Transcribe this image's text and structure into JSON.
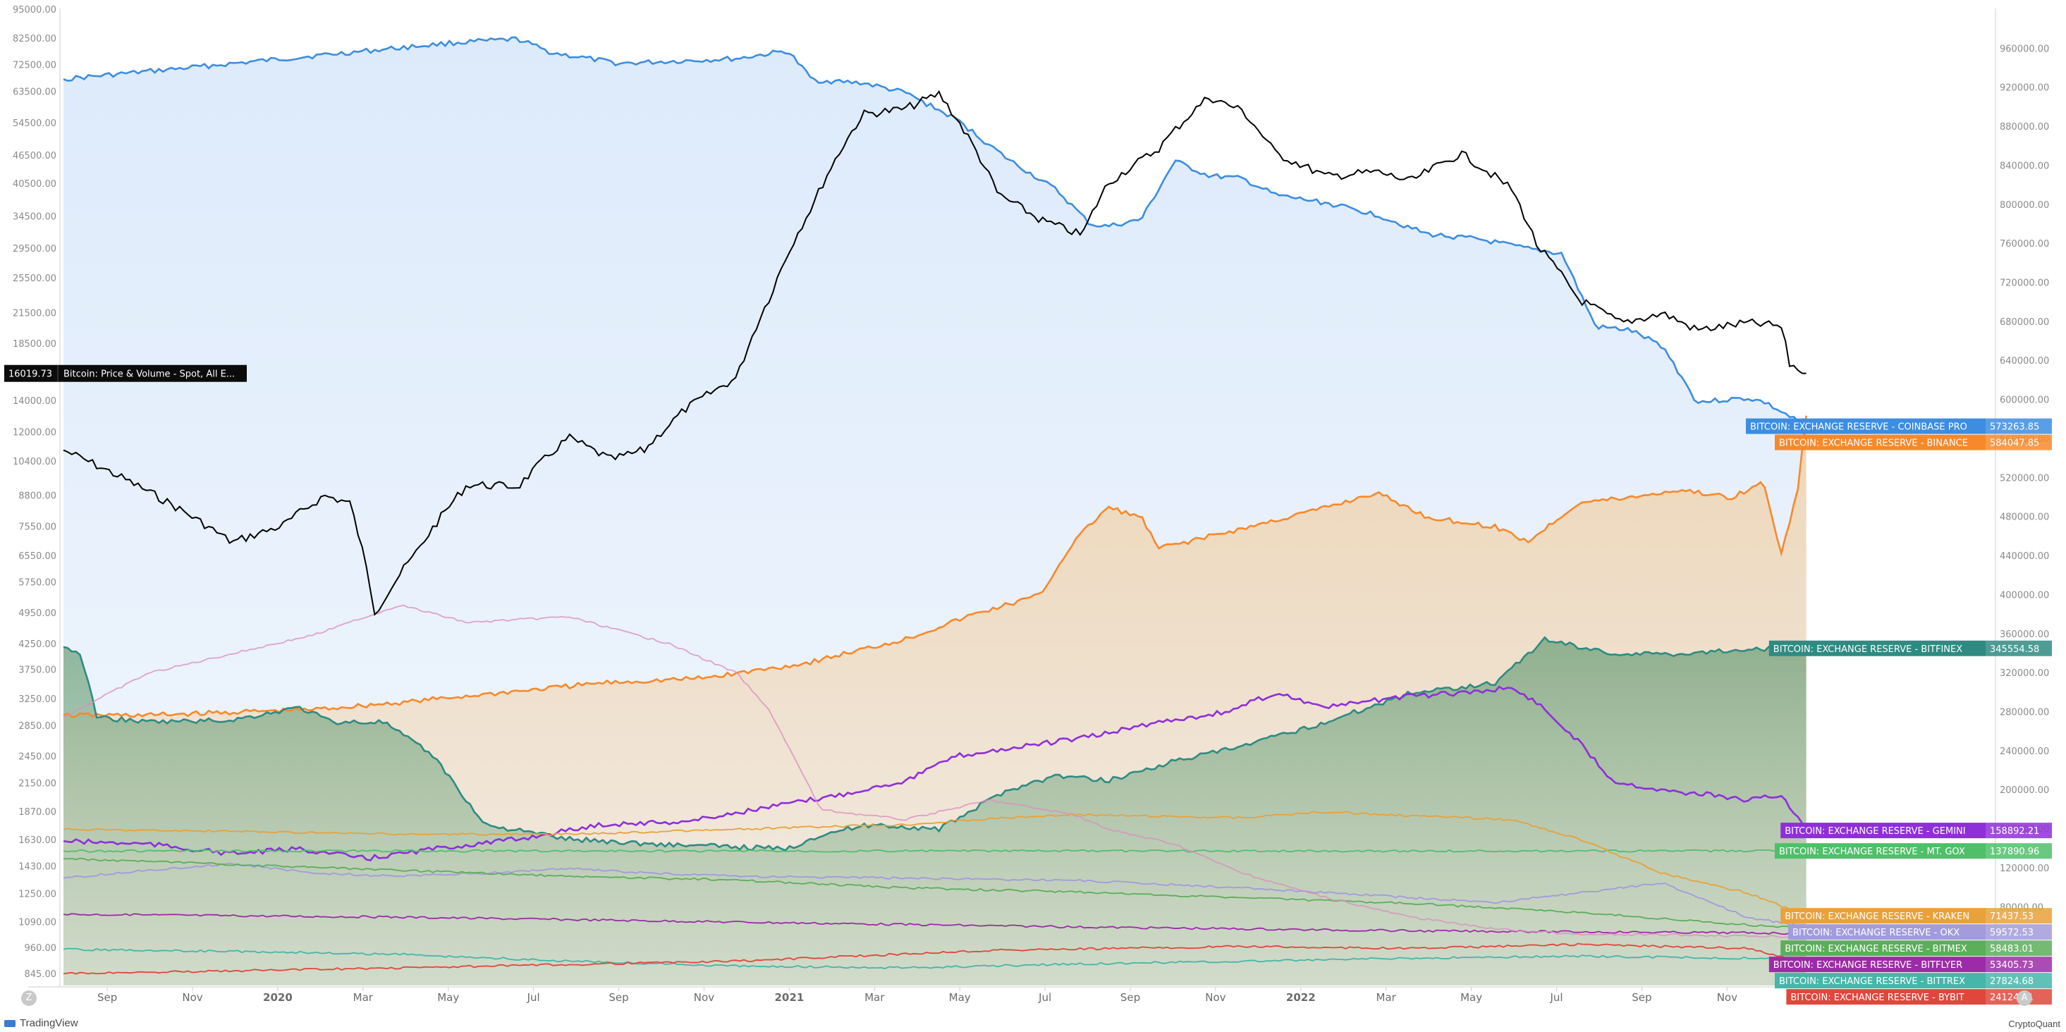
{
  "chart_data": {
    "type": "area",
    "x_ticks": [
      "Sep",
      "Nov",
      "2020",
      "Mar",
      "May",
      "Jul",
      "Sep",
      "Nov",
      "2021",
      "Mar",
      "May",
      "Jul",
      "Sep",
      "Nov",
      "2022",
      "Mar",
      "May",
      "Jul",
      "Sep",
      "Nov"
    ],
    "left_axis_ticks": [
      "95000.00",
      "82500.00",
      "72500.00",
      "63500.00",
      "54500.00",
      "46500.00",
      "40500.00",
      "34500.00",
      "29500.00",
      "25500.00",
      "21500.00",
      "18500.00",
      "16019.73",
      "14000.00",
      "12000.00",
      "10400.00",
      "8800.00",
      "7550.00",
      "6550.00",
      "5750.00",
      "4950.00",
      "4250.00",
      "3750.00",
      "3250.00",
      "2850.00",
      "2450.00",
      "2150.00",
      "1870.00",
      "1630.00",
      "1430.00",
      "1250.00",
      "1090.00",
      "960.00",
      "845.00"
    ],
    "right_axis_ticks": [
      "960000.00",
      "920000.00",
      "880000.00",
      "840000.00",
      "800000.00",
      "760000.00",
      "720000.00",
      "680000.00",
      "640000.00",
      "600000.00",
      "560000.00",
      "520000.00",
      "480000.00",
      "440000.00",
      "400000.00",
      "360000.00",
      "320000.00",
      "280000.00",
      "240000.00",
      "200000.00",
      "160000.00",
      "120000.00",
      "80000.00"
    ],
    "price_series": {
      "label": "16019.73",
      "name": "Bitcoin: Price & Volume - Spot, All E...",
      "color": "#000000",
      "points": [
        [
          0,
          11000
        ],
        [
          0.03,
          9800
        ],
        [
          0.07,
          8200
        ],
        [
          0.1,
          7000
        ],
        [
          0.13,
          7600
        ],
        [
          0.155,
          8800
        ],
        [
          0.17,
          8500
        ],
        [
          0.185,
          4950
        ],
        [
          0.21,
          6700
        ],
        [
          0.24,
          9300
        ],
        [
          0.27,
          9200
        ],
        [
          0.3,
          11700
        ],
        [
          0.325,
          10500
        ],
        [
          0.345,
          11000
        ],
        [
          0.37,
          13500
        ],
        [
          0.4,
          15700
        ],
        [
          0.42,
          23500
        ],
        [
          0.445,
          36500
        ],
        [
          0.475,
          57000
        ],
        [
          0.5,
          58500
        ],
        [
          0.52,
          63000
        ],
        [
          0.555,
          38500
        ],
        [
          0.58,
          34000
        ],
        [
          0.605,
          31500
        ],
        [
          0.62,
          40500
        ],
        [
          0.65,
          48000
        ],
        [
          0.68,
          62000
        ],
        [
          0.7,
          58000
        ],
        [
          0.72,
          47000
        ],
        [
          0.75,
          42000
        ],
        [
          0.78,
          43000
        ],
        [
          0.8,
          41000
        ],
        [
          0.83,
          47000
        ],
        [
          0.86,
          39500
        ],
        [
          0.875,
          30000
        ],
        [
          0.9,
          23000
        ],
        [
          0.925,
          20500
        ],
        [
          0.95,
          21500
        ],
        [
          0.97,
          19800
        ],
        [
          1.0,
          20500
        ],
        [
          1.02,
          20200
        ],
        [
          1.025,
          16800
        ],
        [
          1.035,
          16019.73
        ]
      ]
    },
    "reserve_series": [
      {
        "name": "BITCOIN: EXCHANGE RESERVE - COINBASE PRO",
        "value": "573263.85",
        "color": "#3d8de0",
        "points": [
          [
            0,
            929000
          ],
          [
            0.07,
            940000
          ],
          [
            0.15,
            953000
          ],
          [
            0.23,
            966000
          ],
          [
            0.27,
            970000
          ],
          [
            0.29,
            956000
          ],
          [
            0.33,
            945000
          ],
          [
            0.4,
            950000
          ],
          [
            0.43,
            958000
          ],
          [
            0.445,
            928000
          ],
          [
            0.475,
            925000
          ],
          [
            0.5,
            915000
          ],
          [
            0.53,
            888000
          ],
          [
            0.56,
            848000
          ],
          [
            0.59,
            815000
          ],
          [
            0.61,
            780000
          ],
          [
            0.62,
            778000
          ],
          [
            0.64,
            785000
          ],
          [
            0.66,
            845000
          ],
          [
            0.68,
            830000
          ],
          [
            0.7,
            827000
          ],
          [
            0.72,
            810000
          ],
          [
            0.75,
            802000
          ],
          [
            0.78,
            790000
          ],
          [
            0.81,
            770000
          ],
          [
            0.84,
            765000
          ],
          [
            0.87,
            755000
          ],
          [
            0.89,
            750000
          ],
          [
            0.91,
            675000
          ],
          [
            0.93,
            672000
          ],
          [
            0.95,
            655000
          ],
          [
            0.97,
            598000
          ],
          [
            1.0,
            602000
          ],
          [
            1.01,
            598000
          ],
          [
            1.035,
            573263.85
          ]
        ]
      },
      {
        "name": "BITCOIN: EXCHANGE RESERVE - BINANCE",
        "value": "584047.85",
        "color": "#f7892b",
        "points": [
          [
            0,
            277000
          ],
          [
            0.05,
            277000
          ],
          [
            0.1,
            280000
          ],
          [
            0.15,
            283000
          ],
          [
            0.2,
            290000
          ],
          [
            0.26,
            300000
          ],
          [
            0.32,
            310000
          ],
          [
            0.38,
            315000
          ],
          [
            0.44,
            330000
          ],
          [
            0.5,
            355000
          ],
          [
            0.54,
            380000
          ],
          [
            0.58,
            400000
          ],
          [
            0.6,
            455000
          ],
          [
            0.62,
            490000
          ],
          [
            0.64,
            480000
          ],
          [
            0.65,
            448000
          ],
          [
            0.7,
            468000
          ],
          [
            0.75,
            490000
          ],
          [
            0.78,
            505000
          ],
          [
            0.81,
            480000
          ],
          [
            0.85,
            470000
          ],
          [
            0.87,
            455000
          ],
          [
            0.9,
            495000
          ],
          [
            0.93,
            500000
          ],
          [
            0.96,
            508000
          ],
          [
            0.99,
            500000
          ],
          [
            1.01,
            515000
          ],
          [
            1.02,
            440000
          ],
          [
            1.03,
            510000
          ],
          [
            1.035,
            584047.85
          ]
        ]
      },
      {
        "name": "BITCOIN: EXCHANGE RESERVE - BITFINEX",
        "value": "345554.58",
        "color": "#2e8b82",
        "points": [
          [
            0,
            347000
          ],
          [
            0.01,
            340000
          ],
          [
            0.02,
            275000
          ],
          [
            0.05,
            270000
          ],
          [
            0.1,
            272000
          ],
          [
            0.14,
            285000
          ],
          [
            0.16,
            270000
          ],
          [
            0.19,
            270000
          ],
          [
            0.22,
            235000
          ],
          [
            0.25,
            165000
          ],
          [
            0.3,
            150000
          ],
          [
            0.35,
            145000
          ],
          [
            0.4,
            142000
          ],
          [
            0.43,
            140000
          ],
          [
            0.45,
            155000
          ],
          [
            0.48,
            165000
          ],
          [
            0.52,
            160000
          ],
          [
            0.56,
            200000
          ],
          [
            0.59,
            215000
          ],
          [
            0.62,
            210000
          ],
          [
            0.66,
            230000
          ],
          [
            0.7,
            245000
          ],
          [
            0.75,
            270000
          ],
          [
            0.8,
            300000
          ],
          [
            0.85,
            310000
          ],
          [
            0.88,
            355000
          ],
          [
            0.92,
            340000
          ],
          [
            0.96,
            340000
          ],
          [
            1.0,
            345000
          ],
          [
            1.035,
            345554.58
          ]
        ]
      },
      {
        "name": "BITCOIN: EXCHANGE RESERVE - GEMINI",
        "value": "158892.21",
        "color": "#8e2fd8",
        "points": [
          [
            0,
            148000
          ],
          [
            0.05,
            145000
          ],
          [
            0.1,
            135000
          ],
          [
            0.14,
            140000
          ],
          [
            0.18,
            130000
          ],
          [
            0.22,
            140000
          ],
          [
            0.27,
            150000
          ],
          [
            0.32,
            165000
          ],
          [
            0.37,
            168000
          ],
          [
            0.41,
            180000
          ],
          [
            0.46,
            195000
          ],
          [
            0.5,
            210000
          ],
          [
            0.53,
            235000
          ],
          [
            0.57,
            245000
          ],
          [
            0.61,
            255000
          ],
          [
            0.65,
            270000
          ],
          [
            0.69,
            280000
          ],
          [
            0.72,
            300000
          ],
          [
            0.75,
            285000
          ],
          [
            0.79,
            295000
          ],
          [
            0.83,
            300000
          ],
          [
            0.86,
            305000
          ],
          [
            0.875,
            290000
          ],
          [
            0.9,
            250000
          ],
          [
            0.92,
            210000
          ],
          [
            0.95,
            200000
          ],
          [
            0.98,
            195000
          ],
          [
            1.0,
            190000
          ],
          [
            1.02,
            195000
          ],
          [
            1.035,
            158892.21
          ]
        ]
      },
      {
        "name": "BITCOIN: EXCHANGE RESERVE - MT. GOX",
        "value": "137890.96",
        "color": "#4fbf6a",
        "points": [
          [
            0,
            137890.96
          ],
          [
            1.035,
            137890.96
          ]
        ]
      },
      {
        "name": "BITCOIN: EXCHANGE RESERVE - KRAKEN",
        "value": "71437.53",
        "color": "#e9a13a",
        "points": [
          [
            0,
            160000
          ],
          [
            0.1,
            158000
          ],
          [
            0.2,
            155000
          ],
          [
            0.3,
            155000
          ],
          [
            0.4,
            160000
          ],
          [
            0.5,
            165000
          ],
          [
            0.56,
            172000
          ],
          [
            0.6,
            175000
          ],
          [
            0.7,
            172000
          ],
          [
            0.75,
            178000
          ],
          [
            0.8,
            174000
          ],
          [
            0.86,
            170000
          ],
          [
            0.9,
            150000
          ],
          [
            0.95,
            115000
          ],
          [
            1.0,
            95000
          ],
          [
            1.035,
            71437.53
          ]
        ]
      },
      {
        "name": "BITCOIN: EXCHANGE RESERVE - OKX",
        "value": "59572.53",
        "color": "#a29bdc",
        "points": [
          [
            0,
            110000
          ],
          [
            0.05,
            118000
          ],
          [
            0.1,
            125000
          ],
          [
            0.15,
            115000
          ],
          [
            0.2,
            112000
          ],
          [
            0.25,
            115000
          ],
          [
            0.3,
            120000
          ],
          [
            0.35,
            115000
          ],
          [
            0.4,
            112000
          ],
          [
            0.5,
            110000
          ],
          [
            0.6,
            108000
          ],
          [
            0.7,
            100000
          ],
          [
            0.8,
            90000
          ],
          [
            0.85,
            85000
          ],
          [
            0.9,
            95000
          ],
          [
            0.95,
            105000
          ],
          [
            1.0,
            70000
          ],
          [
            1.035,
            59572.53
          ]
        ]
      },
      {
        "name": "BITCOIN: EXCHANGE RESERVE - BITMEX",
        "value": "58483.01",
        "color": "#5cae5a",
        "points": [
          [
            0,
            130000
          ],
          [
            0.1,
            124000
          ],
          [
            0.2,
            118000
          ],
          [
            0.3,
            112000
          ],
          [
            0.4,
            108000
          ],
          [
            0.5,
            100000
          ],
          [
            0.6,
            96000
          ],
          [
            0.7,
            90000
          ],
          [
            0.8,
            84000
          ],
          [
            0.9,
            75000
          ],
          [
            1.0,
            62000
          ],
          [
            1.035,
            58483.01
          ]
        ]
      },
      {
        "name": "BITCOIN: EXCHANGE RESERVE - BITFLYER",
        "value": "53405.73",
        "color": "#9d2ba7",
        "points": [
          [
            0,
            73000
          ],
          [
            0.2,
            70000
          ],
          [
            0.4,
            65000
          ],
          [
            0.6,
            60000
          ],
          [
            0.8,
            56000
          ],
          [
            1.0,
            54000
          ],
          [
            1.035,
            53405.73
          ]
        ]
      },
      {
        "name": "BITCOIN: EXCHANGE RESERVE - BITTREX",
        "value": "27824.68",
        "color": "#45b6a9",
        "points": [
          [
            0,
            37000
          ],
          [
            0.1,
            35000
          ],
          [
            0.2,
            32000
          ],
          [
            0.3,
            25000
          ],
          [
            0.4,
            20000
          ],
          [
            0.5,
            18000
          ],
          [
            0.6,
            22000
          ],
          [
            0.7,
            25000
          ],
          [
            0.8,
            28000
          ],
          [
            0.9,
            30000
          ],
          [
            1.0,
            28000
          ],
          [
            1.035,
            27824.68
          ]
        ]
      },
      {
        "name": "BITCOIN: EXCHANGE RESERVE - BYBIT",
        "value": "24124.11",
        "color": "#e0463c",
        "points": [
          [
            0,
            12000
          ],
          [
            0.2,
            18000
          ],
          [
            0.4,
            25000
          ],
          [
            0.55,
            36000
          ],
          [
            0.7,
            40000
          ],
          [
            0.8,
            38000
          ],
          [
            0.9,
            42000
          ],
          [
            1.0,
            38000
          ],
          [
            1.035,
            24124.11
          ]
        ]
      },
      {
        "name": "",
        "value": "",
        "color": "#d98fbf",
        "points": [
          [
            0,
            275000
          ],
          [
            0.05,
            320000
          ],
          [
            0.1,
            340000
          ],
          [
            0.15,
            360000
          ],
          [
            0.2,
            390000
          ],
          [
            0.24,
            372000
          ],
          [
            0.3,
            378000
          ],
          [
            0.36,
            350000
          ],
          [
            0.4,
            320000
          ],
          [
            0.42,
            280000
          ],
          [
            0.45,
            180000
          ],
          [
            0.5,
            170000
          ],
          [
            0.55,
            190000
          ],
          [
            0.6,
            175000
          ],
          [
            0.62,
            160000
          ],
          [
            0.66,
            145000
          ],
          [
            0.7,
            115000
          ],
          [
            0.75,
            90000
          ],
          [
            0.8,
            70000
          ],
          [
            0.85,
            58000
          ],
          [
            0.9,
            52000
          ],
          [
            0.95,
            52000
          ],
          [
            1.035,
            50000
          ]
        ]
      }
    ],
    "legend_placement": "right",
    "grid": false
  },
  "footer": {
    "left_button": "Z",
    "right_button": "A",
    "left_brand": "TradingView",
    "right_brand": "CryptoQuant"
  }
}
